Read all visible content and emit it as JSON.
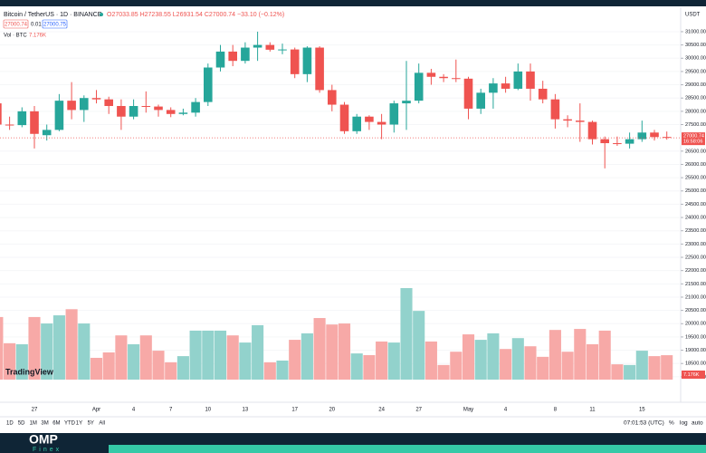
{
  "header": {
    "symbol": "Bitcoin / TetherUS · 1D · BINANCE",
    "ohlc": "O27033.85 H27238.55 L26931.54 C27000.74 −33.10 (−0.12%)",
    "bid": "27000.74",
    "spread": "0.01",
    "ask": "27000.75",
    "volume_title": "Vol · BTC",
    "volume_value": "7.176K",
    "currency": "USDT"
  },
  "chart_data": {
    "type": "candlestick",
    "categories": [
      null,
      null,
      null,
      "27",
      null,
      null,
      null,
      null,
      "Apr",
      null,
      null,
      "4",
      null,
      null,
      "7",
      null,
      null,
      "10",
      null,
      null,
      "13",
      null,
      null,
      null,
      "17",
      null,
      null,
      "20",
      null,
      null,
      null,
      "24",
      null,
      null,
      "27",
      null,
      null,
      null,
      "May",
      null,
      null,
      "4",
      null,
      null,
      null,
      "8",
      null,
      null,
      "11",
      null,
      null,
      null,
      "15",
      null,
      null
    ],
    "open": [
      28300,
      27500,
      27480,
      28000,
      27100,
      27300,
      28400,
      28050,
      28500,
      28450,
      28200,
      27800,
      28200,
      28180,
      28050,
      27900,
      27950,
      28350,
      29650,
      30250,
      29900,
      30400,
      30500,
      30320,
      30330,
      29400,
      30400,
      28800,
      28250,
      27250,
      27800,
      27600,
      27500,
      28300,
      28400,
      29450,
      29300,
      29250,
      29230,
      28100,
      28700,
      29050,
      28850,
      29500,
      28850,
      28450,
      27700,
      27650,
      27600,
      26950,
      26800,
      26780,
      26950,
      27200,
      27033.85
    ],
    "high": [
      28400,
      27800,
      28150,
      28200,
      27500,
      28650,
      29100,
      28600,
      28800,
      28550,
      28450,
      28450,
      28750,
      28250,
      28150,
      28100,
      28500,
      29800,
      30500,
      30500,
      30600,
      31000,
      30600,
      30550,
      30400,
      30450,
      30450,
      29000,
      28350,
      27900,
      27850,
      27900,
      28400,
      29900,
      29800,
      29600,
      29400,
      29950,
      29300,
      28850,
      29250,
      29300,
      29800,
      29800,
      29150,
      28650,
      27850,
      28300,
      27650,
      27050,
      27050,
      27200,
      27650,
      27300,
      27238.55
    ],
    "low": [
      27200,
      27300,
      27400,
      26600,
      26900,
      27250,
      27700,
      27600,
      28300,
      27900,
      27300,
      27700,
      27950,
      27800,
      27780,
      27850,
      27800,
      28200,
      29500,
      29700,
      29800,
      29900,
      30250,
      30150,
      29250,
      29100,
      28700,
      28000,
      27150,
      27150,
      27300,
      26950,
      27200,
      27300,
      28300,
      29000,
      29100,
      29100,
      27700,
      27900,
      28100,
      28700,
      28800,
      28400,
      28300,
      27350,
      27400,
      26850,
      26750,
      25850,
      26700,
      26600,
      26850,
      26900,
      26931.54
    ],
    "close": [
      27500,
      27480,
      28000,
      27150,
      27300,
      28400,
      28050,
      28500,
      28450,
      28200,
      27800,
      28200,
      28180,
      28050,
      27900,
      27950,
      28350,
      29650,
      30250,
      29900,
      30400,
      30500,
      30320,
      30330,
      29400,
      30400,
      28800,
      28250,
      27250,
      27800,
      27600,
      27500,
      28300,
      28400,
      29450,
      29300,
      29250,
      29230,
      28100,
      28700,
      29050,
      28850,
      29500,
      28850,
      28450,
      27700,
      27650,
      27600,
      26950,
      26800,
      26780,
      26950,
      27200,
      27030,
      27000.74
    ],
    "volume": [
      18.4,
      10.7,
      10.4,
      18.4,
      16.5,
      18.9,
      20.7,
      16.5,
      6.4,
      8.0,
      13,
      10.4,
      13,
      8.5,
      5.1,
      6.9,
      14.4,
      14.4,
      14.4,
      13,
      10.9,
      16,
      5.1,
      5.6,
      11.7,
      13.6,
      18.1,
      16.2,
      16.5,
      7.7,
      7.2,
      11.2,
      10.9,
      26.9,
      20.2,
      11.2,
      4.3,
      8.2,
      13.3,
      11.7,
      13.6,
      9,
      12.2,
      9.8,
      6.7,
      14.6,
      8.2,
      14.9,
      10.4,
      14.4,
      4.5,
      4.3,
      8.5,
      6.9,
      7.176
    ],
    "up_color": "#26a69a",
    "down_color": "#ef5350",
    "up_volume_color": "#92d2cc",
    "down_volume_color": "#f7a9a7",
    "ylim": [
      17040,
      31920
    ],
    "yticks": [
      {
        "value": 18000,
        "label": "18000.00"
      },
      {
        "value": 18500,
        "label": "18500.00"
      },
      {
        "value": 19000,
        "label": "19000.00"
      },
      {
        "value": 19500,
        "label": "19500.00"
      },
      {
        "value": 20000,
        "label": "20000.00"
      },
      {
        "value": 20500,
        "label": "20500.00"
      },
      {
        "value": 21000,
        "label": "21000.00"
      },
      {
        "value": 21500,
        "label": "21500.00"
      },
      {
        "value": 22000,
        "label": "22000.00"
      },
      {
        "value": 22500,
        "label": "22500.00"
      },
      {
        "value": 23000,
        "label": "23000.00"
      },
      {
        "value": 23500,
        "label": "23500.00"
      },
      {
        "value": 24000,
        "label": "24000.00"
      },
      {
        "value": 24500,
        "label": "24500.00"
      },
      {
        "value": 25000,
        "label": "25000.00"
      },
      {
        "value": 25500,
        "label": "25500.00"
      },
      {
        "value": 26000,
        "label": "26000.00"
      },
      {
        "value": 26500,
        "label": "26500.00"
      },
      {
        "value": 27500,
        "label": "27500.00"
      },
      {
        "value": 28000,
        "label": "28000.00"
      },
      {
        "value": 28500,
        "label": "28500.00"
      },
      {
        "value": 29000,
        "label": "29000.00"
      },
      {
        "value": 29500,
        "label": "29500.00"
      },
      {
        "value": 30000,
        "label": "30000.00"
      },
      {
        "value": 30500,
        "label": "30500.00"
      },
      {
        "value": 31000,
        "label": "31000.00"
      }
    ],
    "grid": true,
    "log_scale": false,
    "last_price": 27000.74,
    "last_price_label": "27000.74",
    "countdown": "16:58:06"
  },
  "toolbar": {
    "ranges": [
      "1D",
      "5D",
      "1M",
      "3M",
      "6M",
      "YTD",
      "1Y",
      "5Y",
      "All"
    ],
    "clock": "07:01:53 (UTC)",
    "percent": "%",
    "log": "log",
    "auto": "auto"
  },
  "footer": {
    "brand": "OMP",
    "brand_sub": "Finex",
    "watermark": "TradingView"
  }
}
